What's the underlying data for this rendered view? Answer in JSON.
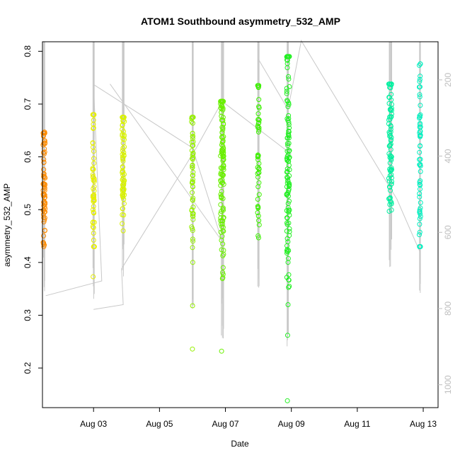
{
  "chart_data": {
    "type": "scatter",
    "title": "ATOM1 Southbound asymmetry_532_AMP",
    "xlabel": "Date",
    "ylabel": "asymmetry_532_AMP",
    "x_ticks": [
      "Aug 03",
      "Aug 05",
      "Aug 07",
      "Aug 09",
      "Aug 11",
      "Aug 13"
    ],
    "x_tick_values": [
      3,
      5,
      7,
      9,
      11,
      13
    ],
    "xlim": [
      1.45,
      13.45
    ],
    "y_ticks": [
      "0.2",
      "0.3",
      "0.4",
      "0.5",
      "0.6",
      "0.7",
      "0.8"
    ],
    "y_tick_values": [
      0.2,
      0.3,
      0.4,
      0.5,
      0.6,
      0.7,
      0.8
    ],
    "ylim": [
      0.125,
      0.818
    ],
    "y2_ticks": [
      "200",
      "400",
      "600",
      "800",
      "1000"
    ],
    "y2_tick_values": [
      200,
      400,
      600,
      800,
      1000
    ],
    "y2lim": [
      100,
      1060
    ],
    "y2_color": "#bebebe",
    "line_color": "#c8c8c8",
    "clusters": [
      {
        "x": 1.5,
        "spread": 0.06,
        "color": "#ff8c00",
        "n": 70,
        "ymin": 0.43,
        "ymax": 0.645,
        "center": 0.55,
        "outliers": [
          0.647,
          0.437
        ]
      },
      {
        "x": 3.0,
        "spread": 0.05,
        "color": "#e5ef00",
        "n": 55,
        "ymin": 0.43,
        "ymax": 0.68,
        "center": 0.55,
        "outliers": [
          0.373
        ]
      },
      {
        "x": 3.9,
        "spread": 0.07,
        "color": "#d8f200",
        "n": 70,
        "ymin": 0.46,
        "ymax": 0.675,
        "center": 0.58,
        "outliers": []
      },
      {
        "x": 6.0,
        "spread": 0.05,
        "color": "#96f000",
        "n": 60,
        "ymin": 0.4,
        "ymax": 0.675,
        "center": 0.57,
        "outliers": [
          0.318,
          0.236
        ]
      },
      {
        "x": 6.9,
        "spread": 0.1,
        "color": "#6af000",
        "n": 120,
        "ymin": 0.355,
        "ymax": 0.705,
        "center": 0.6,
        "outliers": [
          0.232
        ]
      },
      {
        "x": 8.0,
        "spread": 0.05,
        "color": "#3cf000",
        "n": 45,
        "ymin": 0.435,
        "ymax": 0.735,
        "center": 0.6,
        "outliers": []
      },
      {
        "x": 8.9,
        "spread": 0.09,
        "color": "#20f020",
        "n": 110,
        "ymin": 0.32,
        "ymax": 0.79,
        "center": 0.6,
        "outliers": [
          0.262,
          0.138
        ]
      },
      {
        "x": 12.0,
        "spread": 0.09,
        "color": "#00f0a0",
        "n": 80,
        "ymin": 0.475,
        "ymax": 0.738,
        "center": 0.63,
        "outliers": []
      },
      {
        "x": 12.9,
        "spread": 0.04,
        "color": "#00f0c0",
        "n": 60,
        "ymin": 0.43,
        "ymax": 0.776,
        "center": 0.61,
        "outliers": []
      }
    ],
    "guide_lines": [
      [
        [
          1.55,
          0.337
        ],
        [
          3.25,
          0.365
        ],
        [
          3.0,
          0.737
        ],
        [
          6.0,
          0.617
        ],
        [
          6.9,
          0.44
        ],
        [
          3.5,
          0.738
        ]
      ],
      [
        [
          3.0,
          0.311
        ],
        [
          3.9,
          0.32
        ],
        [
          3.85,
          0.388
        ],
        [
          6.1,
          0.615
        ],
        [
          6.9,
          0.705
        ],
        [
          9.0,
          0.605
        ]
      ],
      [
        [
          8.0,
          0.785
        ],
        [
          8.9,
          0.69
        ],
        [
          9.3,
          0.82
        ],
        [
          12.2,
          0.52
        ],
        [
          12.9,
          0.42
        ]
      ]
    ]
  }
}
